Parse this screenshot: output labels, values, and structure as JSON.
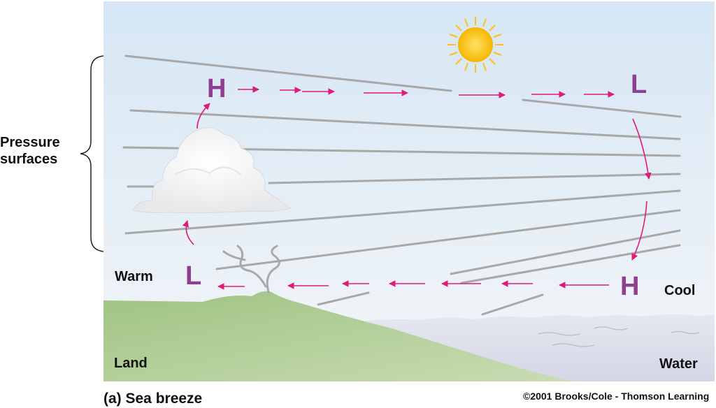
{
  "labels": {
    "pressure_line1": "Pressure",
    "pressure_line2": "surfaces",
    "warm": "Warm",
    "cool": "Cool",
    "land": "Land",
    "water": "Water",
    "caption": "(a) Sea breeze",
    "copyright": "©2001 Brooks/Cole - Thomson Learning"
  },
  "pressure_markers": {
    "upper_left": "H",
    "upper_right": "L",
    "lower_left": "L",
    "lower_right": "H"
  },
  "colors": {
    "sky_top": "#d8e7f3",
    "sky_bottom": "#f2f6f9",
    "land": "#a9c98a",
    "water": "#dde0ec",
    "pressure_line": "#a8a8a8",
    "arrow": "#e0197b",
    "marker": "#8e3f8f",
    "sun": "#f7c21a"
  },
  "icons": [
    "sun-icon",
    "cloud-icon",
    "smoke-icon",
    "brace-icon"
  ]
}
